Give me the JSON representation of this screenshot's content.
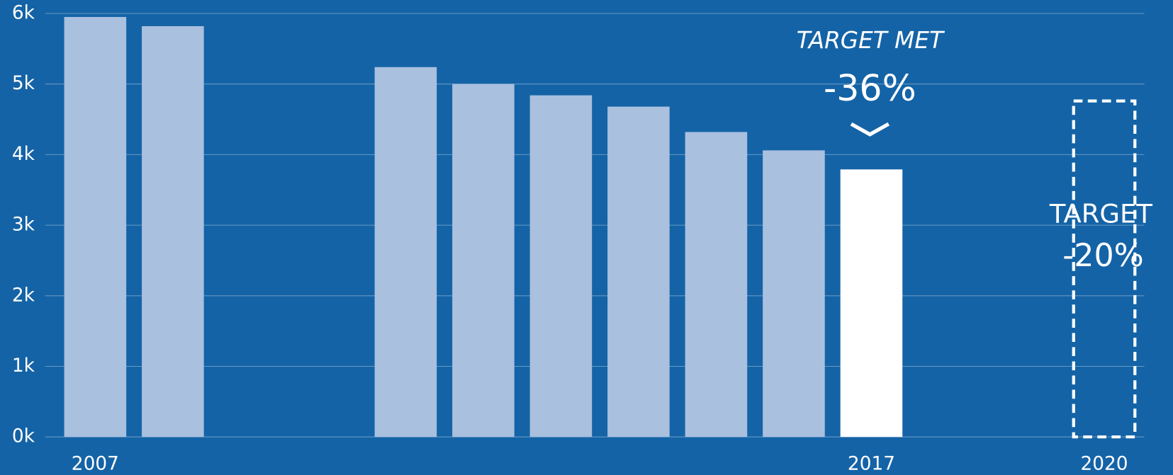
{
  "chart_data": {
    "type": "bar",
    "categories": [
      "2007",
      null,
      null,
      null,
      null,
      null,
      null,
      null,
      null,
      null,
      "2017",
      null,
      null,
      "2020"
    ],
    "values": [
      5950,
      5820,
      null,
      null,
      5240,
      5000,
      4840,
      4680,
      4320,
      4060,
      3790,
      null,
      null,
      null
    ],
    "colors": [
      "#a9c0df",
      "#a9c0df",
      null,
      null,
      "#a9c0df",
      "#a9c0df",
      "#a9c0df",
      "#a9c0df",
      "#a9c0df",
      "#a9c0df",
      "#ffffff",
      null,
      null,
      null
    ],
    "target_values": [
      null,
      null,
      null,
      null,
      null,
      null,
      null,
      null,
      null,
      null,
      null,
      null,
      null,
      4760
    ],
    "target_color": "#ffffff",
    "ylim": [
      0,
      6000
    ],
    "yticks": [
      {
        "value": 0,
        "label": "0k"
      },
      {
        "value": 1000,
        "label": "1k"
      },
      {
        "value": 2000,
        "label": "2k"
      },
      {
        "value": 3000,
        "label": "3k"
      },
      {
        "value": 4000,
        "label": "4k"
      },
      {
        "value": 5000,
        "label": "5k"
      },
      {
        "value": 6000,
        "label": "6k"
      }
    ],
    "grid": true,
    "annotations": [
      "TARGET MET",
      "-36%",
      "TARGET",
      "-20%"
    ]
  }
}
